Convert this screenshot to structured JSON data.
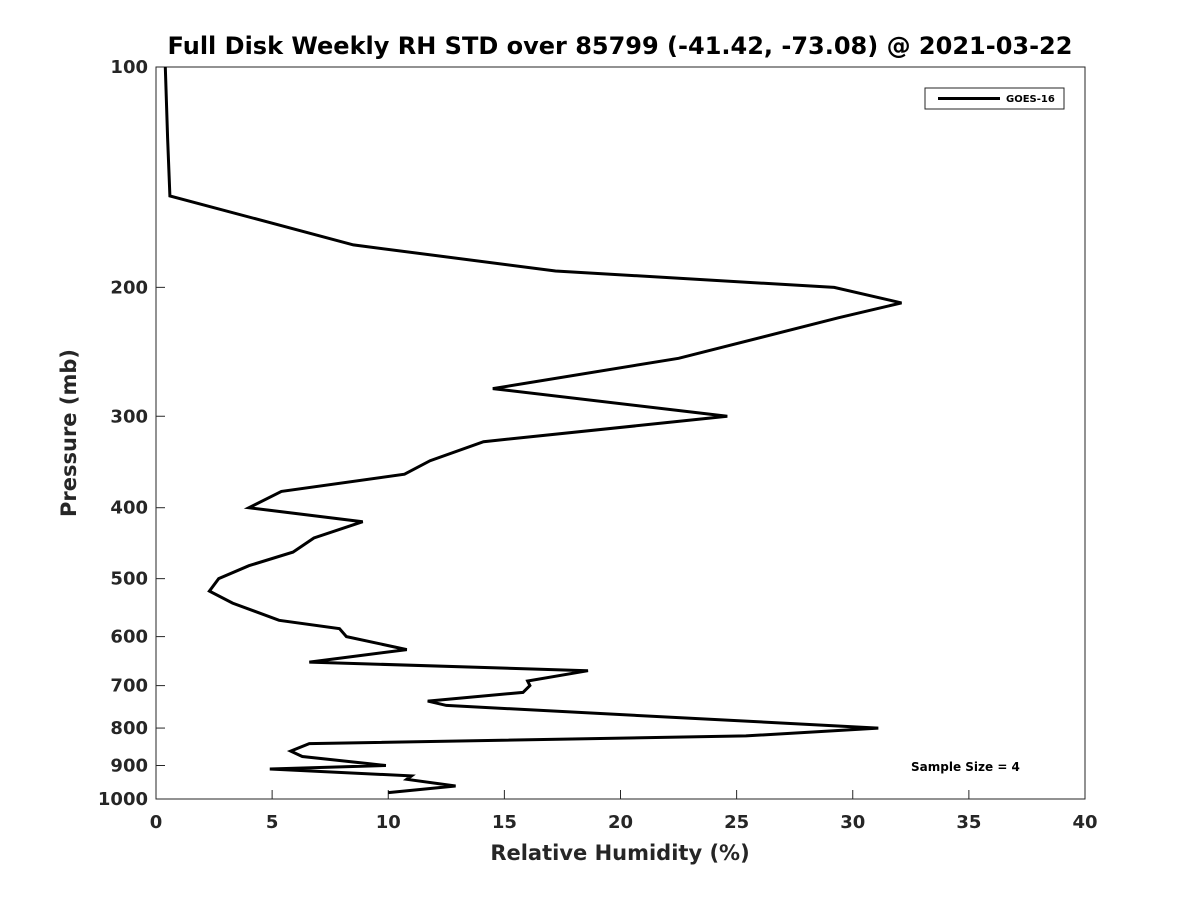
{
  "chart_data": {
    "type": "line",
    "title": "Full Disk Weekly RH STD over 85799 (-41.42, -73.08) @ 2021-03-22",
    "xlabel": "Relative Humidity (%)",
    "ylabel": "Pressure (mb)",
    "xlim": [
      0,
      40
    ],
    "ylim": [
      100,
      1000
    ],
    "yscale": "log",
    "reverse_y": true,
    "grid": false,
    "legend_position": "top-right",
    "x_ticks": [
      "0",
      "5",
      "10",
      "15",
      "20",
      "25",
      "30",
      "35",
      "40"
    ],
    "y_ticks": [
      "100",
      "200",
      "300",
      "400",
      "500",
      "600",
      "700",
      "800",
      "900",
      "1000"
    ],
    "series": [
      {
        "name": "GOES-16",
        "color": "#000000",
        "points": [
          [
            0.4,
            100
          ],
          [
            0.5,
            125
          ],
          [
            0.6,
            150
          ],
          [
            8.5,
            175
          ],
          [
            17.2,
            190
          ],
          [
            29.2,
            200
          ],
          [
            32.1,
            210
          ],
          [
            29.4,
            220
          ],
          [
            22.5,
            250
          ],
          [
            14.5,
            275
          ],
          [
            24.6,
            300
          ],
          [
            14.1,
            325
          ],
          [
            11.8,
            345
          ],
          [
            10.7,
            360
          ],
          [
            5.4,
            380
          ],
          [
            4.0,
            400
          ],
          [
            8.9,
            418
          ],
          [
            6.8,
            440
          ],
          [
            5.9,
            460
          ],
          [
            4.0,
            480
          ],
          [
            2.7,
            500
          ],
          [
            2.3,
            520
          ],
          [
            3.3,
            540
          ],
          [
            5.3,
            570
          ],
          [
            7.9,
            585
          ],
          [
            8.2,
            600
          ],
          [
            10.8,
            625
          ],
          [
            6.6,
            650
          ],
          [
            18.6,
            668
          ],
          [
            16.0,
            690
          ],
          [
            16.1,
            700
          ],
          [
            15.8,
            715
          ],
          [
            11.7,
            735
          ],
          [
            12.5,
            745
          ],
          [
            31.1,
            800
          ],
          [
            25.4,
            820
          ],
          [
            6.6,
            840
          ],
          [
            5.8,
            860
          ],
          [
            6.3,
            875
          ],
          [
            9.9,
            900
          ],
          [
            4.9,
            910
          ],
          [
            11.0,
            930
          ],
          [
            10.8,
            940
          ],
          [
            12.9,
            960
          ],
          [
            10.0,
            980
          ]
        ]
      }
    ],
    "annotations": [
      "Sample Size = 4"
    ]
  }
}
